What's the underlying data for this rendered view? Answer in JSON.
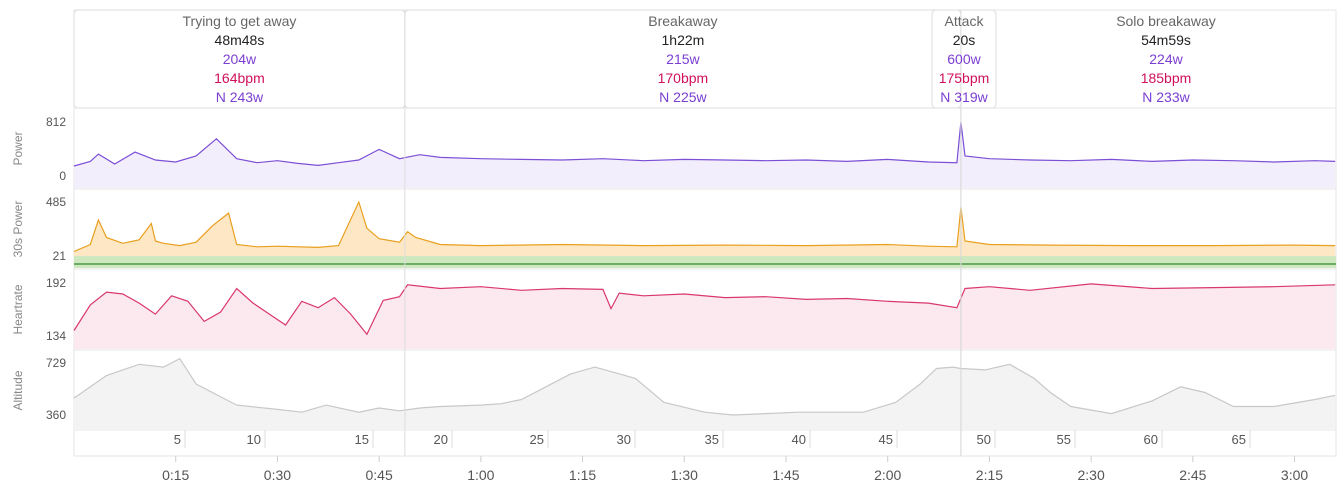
{
  "intervals": [
    {
      "name": "Trying to get away",
      "duration": "48m48s",
      "power": "204w",
      "hr": "164bpm",
      "np": "N 243w",
      "t0": 0.0,
      "t1": 0.8133
    },
    {
      "name": "Breakaway",
      "duration": "1h22m",
      "power": "215w",
      "hr": "170bpm",
      "np": "N 225w",
      "t0": 0.8133,
      "t1": 2.18
    },
    {
      "name": "Attack",
      "duration": "20s",
      "power": "600w",
      "hr": "175bpm",
      "np": "N 319w",
      "t0": 2.18,
      "t1": 2.1856
    },
    {
      "name": "Solo breakaway",
      "duration": "54m59s",
      "power": "224w",
      "hr": "185bpm",
      "np": "N 233w",
      "t0": 2.1856,
      "t1": 3.1019
    }
  ],
  "colors": {
    "power": "#7b4fd6",
    "power_fill": "#f3eefb",
    "hr": "#d9376e",
    "hr_fill": "#fbe9ef",
    "altitude": "#c8c8c8",
    "altitude_fill": "#f3f3f3",
    "text_power": "#7b3fd1",
    "text_hr": "#d0105c",
    "axis_text": "#555555",
    "grid": "#e6e6e6"
  },
  "chart_data": [
    {
      "type": "line",
      "ylabel": "Power",
      "ylim": [
        0,
        812
      ],
      "yticks": [
        "812",
        "0"
      ],
      "series": [
        {
          "name": "Power",
          "x": [
            0,
            0.04,
            0.06,
            0.1,
            0.15,
            0.2,
            0.25,
            0.3,
            0.35,
            0.4,
            0.45,
            0.5,
            0.55,
            0.6,
            0.65,
            0.7,
            0.75,
            0.8,
            0.85,
            0.9,
            1.0,
            1.1,
            1.2,
            1.3,
            1.4,
            1.5,
            1.6,
            1.7,
            1.8,
            1.9,
            2.0,
            2.1,
            2.17,
            2.18,
            2.19,
            2.25,
            2.35,
            2.45,
            2.55,
            2.65,
            2.75,
            2.85,
            2.95,
            3.05,
            3.1
          ],
          "y": [
            150,
            220,
            330,
            180,
            360,
            240,
            210,
            300,
            560,
            260,
            200,
            230,
            190,
            160,
            200,
            240,
            400,
            260,
            320,
            280,
            260,
            250,
            240,
            260,
            230,
            250,
            240,
            230,
            240,
            220,
            250,
            210,
            200,
            812,
            300,
            260,
            240,
            230,
            250,
            220,
            240,
            230,
            210,
            230,
            220
          ]
        }
      ]
    },
    {
      "type": "area",
      "ylabel": "30s Power",
      "ylim": [
        21,
        485
      ],
      "yticks": [
        "485",
        "21"
      ],
      "series": [
        {
          "name": "30s Power",
          "x": [
            0,
            0.04,
            0.06,
            0.08,
            0.12,
            0.16,
            0.19,
            0.2,
            0.22,
            0.26,
            0.3,
            0.34,
            0.38,
            0.4,
            0.45,
            0.5,
            0.6,
            0.65,
            0.7,
            0.72,
            0.75,
            0.8,
            0.82,
            0.84,
            0.9,
            1.0,
            1.2,
            1.4,
            1.6,
            1.8,
            2.0,
            2.1,
            2.17,
            2.18,
            2.19,
            2.25,
            2.4,
            2.6,
            2.8,
            3.0,
            3.1
          ],
          "y": [
            60,
            120,
            330,
            180,
            130,
            160,
            300,
            150,
            130,
            110,
            140,
            280,
            390,
            120,
            100,
            105,
            95,
            110,
            485,
            260,
            170,
            140,
            230,
            180,
            120,
            110,
            120,
            110,
            115,
            110,
            120,
            105,
            100,
            440,
            150,
            120,
            115,
            110,
            110,
            115,
            110
          ]
        }
      ]
    },
    {
      "type": "area",
      "ylabel": "Heartrate",
      "ylim": [
        134,
        192
      ],
      "yticks": [
        "192",
        "134"
      ],
      "series": [
        {
          "name": "Heartrate",
          "x": [
            0,
            0.04,
            0.08,
            0.12,
            0.16,
            0.2,
            0.24,
            0.28,
            0.32,
            0.36,
            0.4,
            0.44,
            0.48,
            0.52,
            0.56,
            0.6,
            0.64,
            0.68,
            0.72,
            0.76,
            0.8,
            0.82,
            0.9,
            1.0,
            1.1,
            1.2,
            1.3,
            1.32,
            1.34,
            1.4,
            1.5,
            1.6,
            1.7,
            1.8,
            1.9,
            2.0,
            2.1,
            2.17,
            2.19,
            2.25,
            2.35,
            2.5,
            2.65,
            2.8,
            2.95,
            3.1
          ],
          "y": [
            140,
            168,
            182,
            180,
            170,
            158,
            178,
            172,
            150,
            160,
            186,
            170,
            158,
            146,
            172,
            165,
            176,
            158,
            136,
            173,
            177,
            190,
            186,
            188,
            184,
            186,
            185,
            164,
            181,
            178,
            180,
            176,
            177,
            174,
            175,
            172,
            170,
            165,
            186,
            188,
            184,
            191,
            186,
            187,
            188,
            190
          ]
        }
      ]
    },
    {
      "type": "area",
      "ylabel": "Altitude",
      "ylim": [
        360,
        729
      ],
      "yticks": [
        "729",
        "360"
      ],
      "series": [
        {
          "name": "Altitude",
          "x": [
            0,
            0.08,
            0.16,
            0.22,
            0.26,
            0.3,
            0.4,
            0.5,
            0.56,
            0.62,
            0.7,
            0.75,
            0.8,
            0.85,
            0.9,
            1.0,
            1.05,
            1.1,
            1.16,
            1.22,
            1.28,
            1.33,
            1.38,
            1.45,
            1.55,
            1.62,
            1.7,
            1.78,
            1.86,
            1.94,
            2.02,
            2.08,
            2.12,
            2.16,
            2.18,
            2.24,
            2.3,
            2.36,
            2.4,
            2.45,
            2.55,
            2.65,
            2.72,
            2.78,
            2.85,
            2.95,
            3.05,
            3.1
          ],
          "y": [
            480,
            640,
            720,
            700,
            760,
            580,
            430,
            400,
            380,
            430,
            380,
            410,
            390,
            410,
            420,
            430,
            440,
            470,
            560,
            650,
            700,
            660,
            620,
            450,
            380,
            360,
            370,
            380,
            380,
            380,
            450,
            580,
            690,
            700,
            690,
            680,
            720,
            620,
            520,
            420,
            370,
            460,
            560,
            520,
            420,
            420,
            470,
            500
          ]
        }
      ]
    }
  ],
  "upper_axis": {
    "labels": [
      "5",
      "10",
      "15",
      "20",
      "25",
      "30",
      "35",
      "40",
      "45",
      "50",
      "55",
      "60",
      "65"
    ]
  },
  "time_axis": {
    "labels": [
      "0:15",
      "0:30",
      "0:45",
      "1:00",
      "1:15",
      "1:30",
      "1:45",
      "2:00",
      "2:15",
      "2:30",
      "2:45",
      "3:00"
    ]
  }
}
